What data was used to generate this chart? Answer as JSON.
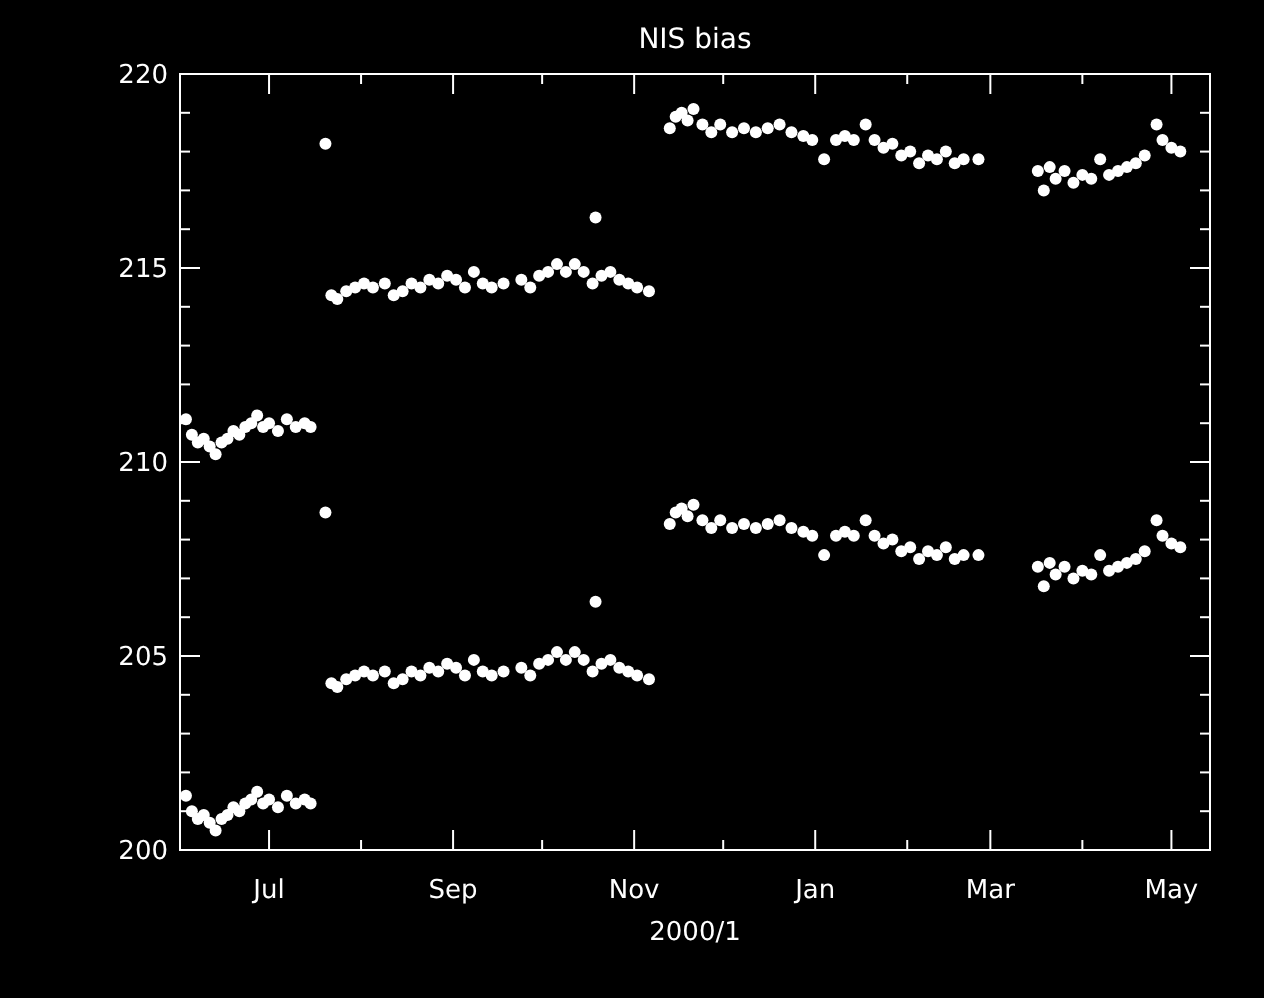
{
  "chart_data": {
    "type": "scatter",
    "title": "NIS bias",
    "xlabel": "2000/1",
    "marker": "circle",
    "xlim": [
      "2000-06-01",
      "2001-05-14"
    ],
    "xticks": [
      {
        "value": "2000-07-01",
        "label": "Jul"
      },
      {
        "value": "2000-08-01",
        "label": null
      },
      {
        "value": "2000-09-01",
        "label": "Sep"
      },
      {
        "value": "2000-10-01",
        "label": null
      },
      {
        "value": "2000-11-01",
        "label": "Nov"
      },
      {
        "value": "2000-12-01",
        "label": null
      },
      {
        "value": "2001-01-01",
        "label": "Jan"
      },
      {
        "value": "2001-02-01",
        "label": null
      },
      {
        "value": "2001-03-01",
        "label": "Mar"
      },
      {
        "value": "2001-04-01",
        "label": null
      },
      {
        "value": "2001-05-01",
        "label": "May"
      }
    ],
    "ylim": [
      200,
      220
    ],
    "yticks": [
      200,
      {
        "value": 201,
        "label": null
      },
      {
        "value": 202,
        "label": null
      },
      {
        "value": 203,
        "label": null
      },
      {
        "value": 204,
        "label": null
      },
      205,
      {
        "value": 206,
        "label": null
      },
      {
        "value": 207,
        "label": null
      },
      {
        "value": 208,
        "label": null
      },
      {
        "value": 209,
        "label": null
      },
      210,
      {
        "value": 211,
        "label": null
      },
      {
        "value": 212,
        "label": null
      },
      {
        "value": 213,
        "label": null
      },
      {
        "value": 214,
        "label": null
      },
      215,
      {
        "value": 216,
        "label": null
      },
      {
        "value": 217,
        "label": null
      },
      {
        "value": 218,
        "label": null
      },
      {
        "value": 219,
        "label": null
      },
      220
    ],
    "x": [
      "2000-06-03",
      "2000-06-05",
      "2000-06-07",
      "2000-06-09",
      "2000-06-11",
      "2000-06-13",
      "2000-06-15",
      "2000-06-17",
      "2000-06-19",
      "2000-06-21",
      "2000-06-23",
      "2000-06-25",
      "2000-06-27",
      "2000-06-29",
      "2000-07-01",
      "2000-07-04",
      "2000-07-07",
      "2000-07-10",
      "2000-07-13",
      "2000-07-15",
      "2000-07-20",
      "2000-07-22",
      "2000-07-24",
      "2000-07-27",
      "2000-07-30",
      "2000-08-02",
      "2000-08-05",
      "2000-08-09",
      "2000-08-12",
      "2000-08-15",
      "2000-08-18",
      "2000-08-21",
      "2000-08-24",
      "2000-08-27",
      "2000-08-30",
      "2000-09-02",
      "2000-09-05",
      "2000-09-08",
      "2000-09-11",
      "2000-09-14",
      "2000-09-18",
      "2000-09-24",
      "2000-09-27",
      "2000-09-30",
      "2000-10-03",
      "2000-10-06",
      "2000-10-09",
      "2000-10-12",
      "2000-10-15",
      "2000-10-18",
      "2000-10-19",
      "2000-10-21",
      "2000-10-24",
      "2000-10-27",
      "2000-10-30",
      "2000-11-02",
      "2000-11-06",
      "2000-11-13",
      "2000-11-15",
      "2000-11-17",
      "2000-11-19",
      "2000-11-21",
      "2000-11-24",
      "2000-11-27",
      "2000-11-30",
      "2000-12-04",
      "2000-12-08",
      "2000-12-12",
      "2000-12-16",
      "2000-12-20",
      "2000-12-24",
      "2000-12-28",
      "2000-12-31",
      "2001-01-04",
      "2001-01-08",
      "2001-01-11",
      "2001-01-14",
      "2001-01-18",
      "2001-01-21",
      "2001-01-24",
      "2001-01-27",
      "2001-01-30",
      "2001-02-02",
      "2001-02-05",
      "2001-02-08",
      "2001-02-11",
      "2001-02-14",
      "2001-02-17",
      "2001-02-20",
      "2001-02-25",
      "2001-03-17",
      "2001-03-19",
      "2001-03-21",
      "2001-03-23",
      "2001-03-26",
      "2001-03-29",
      "2001-04-01",
      "2001-04-04",
      "2001-04-07",
      "2001-04-10",
      "2001-04-13",
      "2001-04-16",
      "2001-04-19",
      "2001-04-22",
      "2001-04-26",
      "2001-04-28",
      "2001-05-01",
      "2001-05-04"
    ],
    "series": [
      {
        "color": "#ffffff",
        "values": [
          211.1,
          210.7,
          210.5,
          210.6,
          210.4,
          210.2,
          210.5,
          210.6,
          210.8,
          210.7,
          210.9,
          211.0,
          211.2,
          210.9,
          211.0,
          210.8,
          211.1,
          210.9,
          211.0,
          210.9,
          218.2,
          214.3,
          214.2,
          214.4,
          214.5,
          214.6,
          214.5,
          214.6,
          214.3,
          214.4,
          214.6,
          214.5,
          214.7,
          214.6,
          214.8,
          214.7,
          214.5,
          214.9,
          214.6,
          214.5,
          214.6,
          214.7,
          214.5,
          214.8,
          214.9,
          215.1,
          214.9,
          215.1,
          214.9,
          214.6,
          216.3,
          214.8,
          214.9,
          214.7,
          214.6,
          214.5,
          214.4,
          218.6,
          218.9,
          219.0,
          218.8,
          219.1,
          218.7,
          218.5,
          218.7,
          218.5,
          218.6,
          218.5,
          218.6,
          218.7,
          218.5,
          218.4,
          218.3,
          217.8,
          218.3,
          218.4,
          218.3,
          218.7,
          218.3,
          218.1,
          218.2,
          217.9,
          218.0,
          217.7,
          217.9,
          217.8,
          218.0,
          217.7,
          217.8,
          217.8,
          217.5,
          217.0,
          217.6,
          217.3,
          217.5,
          217.2,
          217.4,
          217.3,
          217.8,
          217.4,
          217.5,
          217.6,
          217.7,
          217.9,
          218.7,
          218.3,
          218.1,
          218.0
        ]
      },
      {
        "color": "#ffffff",
        "values": [
          201.4,
          201.0,
          200.8,
          200.9,
          200.7,
          200.5,
          200.8,
          200.9,
          201.1,
          201.0,
          201.2,
          201.3,
          201.5,
          201.2,
          201.3,
          201.1,
          201.4,
          201.2,
          201.3,
          201.2,
          208.7,
          204.3,
          204.2,
          204.4,
          204.5,
          204.6,
          204.5,
          204.6,
          204.3,
          204.4,
          204.6,
          204.5,
          204.7,
          204.6,
          204.8,
          204.7,
          204.5,
          204.9,
          204.6,
          204.5,
          204.6,
          204.7,
          204.5,
          204.8,
          204.9,
          205.1,
          204.9,
          205.1,
          204.9,
          204.6,
          206.4,
          204.8,
          204.9,
          204.7,
          204.6,
          204.5,
          204.4,
          208.4,
          208.7,
          208.8,
          208.6,
          208.9,
          208.5,
          208.3,
          208.5,
          208.3,
          208.4,
          208.3,
          208.4,
          208.5,
          208.3,
          208.2,
          208.1,
          207.6,
          208.1,
          208.2,
          208.1,
          208.5,
          208.1,
          207.9,
          208.0,
          207.7,
          207.8,
          207.5,
          207.7,
          207.6,
          207.8,
          207.5,
          207.6,
          207.6,
          207.3,
          206.8,
          207.4,
          207.1,
          207.3,
          207.0,
          207.2,
          207.1,
          207.6,
          207.2,
          207.3,
          207.4,
          207.5,
          207.7,
          208.5,
          208.1,
          207.9,
          207.8
        ]
      }
    ]
  }
}
